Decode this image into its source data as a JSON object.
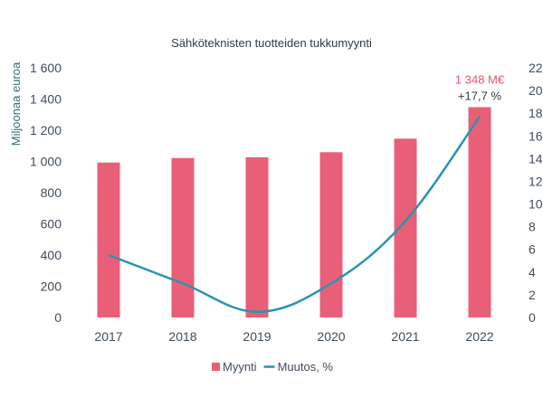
{
  "chart_data": {
    "type": "bar",
    "title": "Sähköteknisten tuotteiden tukkumyynti",
    "ylabel": "Miljoonaa euroa",
    "y2label": "",
    "categories": [
      "2017",
      "2018",
      "2019",
      "2020",
      "2021",
      "2022"
    ],
    "series": [
      {
        "name": "Myynti",
        "type": "bar",
        "axis": "left",
        "values": [
          993,
          1022,
          1027,
          1059,
          1146,
          1348
        ]
      },
      {
        "name": "Muutos, %",
        "type": "line",
        "axis": "right",
        "values": [
          5.5,
          3.0,
          0.5,
          3.0,
          8.5,
          17.7
        ]
      }
    ],
    "ylim": [
      0,
      1600
    ],
    "y2lim": [
      0,
      22
    ],
    "yticks": [
      "0",
      "200",
      "400",
      "600",
      "800",
      "1 000",
      "1 200",
      "1 400",
      "1 600"
    ],
    "y2ticks": [
      "0",
      "2",
      "4",
      "6",
      "8",
      "10",
      "12",
      "14",
      "16",
      "18",
      "20",
      "22"
    ],
    "annotations": [
      {
        "text": "1 348 M€",
        "category": "2022",
        "color": "#e8546d"
      },
      {
        "text": "+17,7 %",
        "category": "2022",
        "color": "#2f3b46"
      }
    ],
    "legend_position": "bottom",
    "grid": false,
    "colors": {
      "bar": "#e95f78",
      "line": "#2c93ad"
    }
  }
}
